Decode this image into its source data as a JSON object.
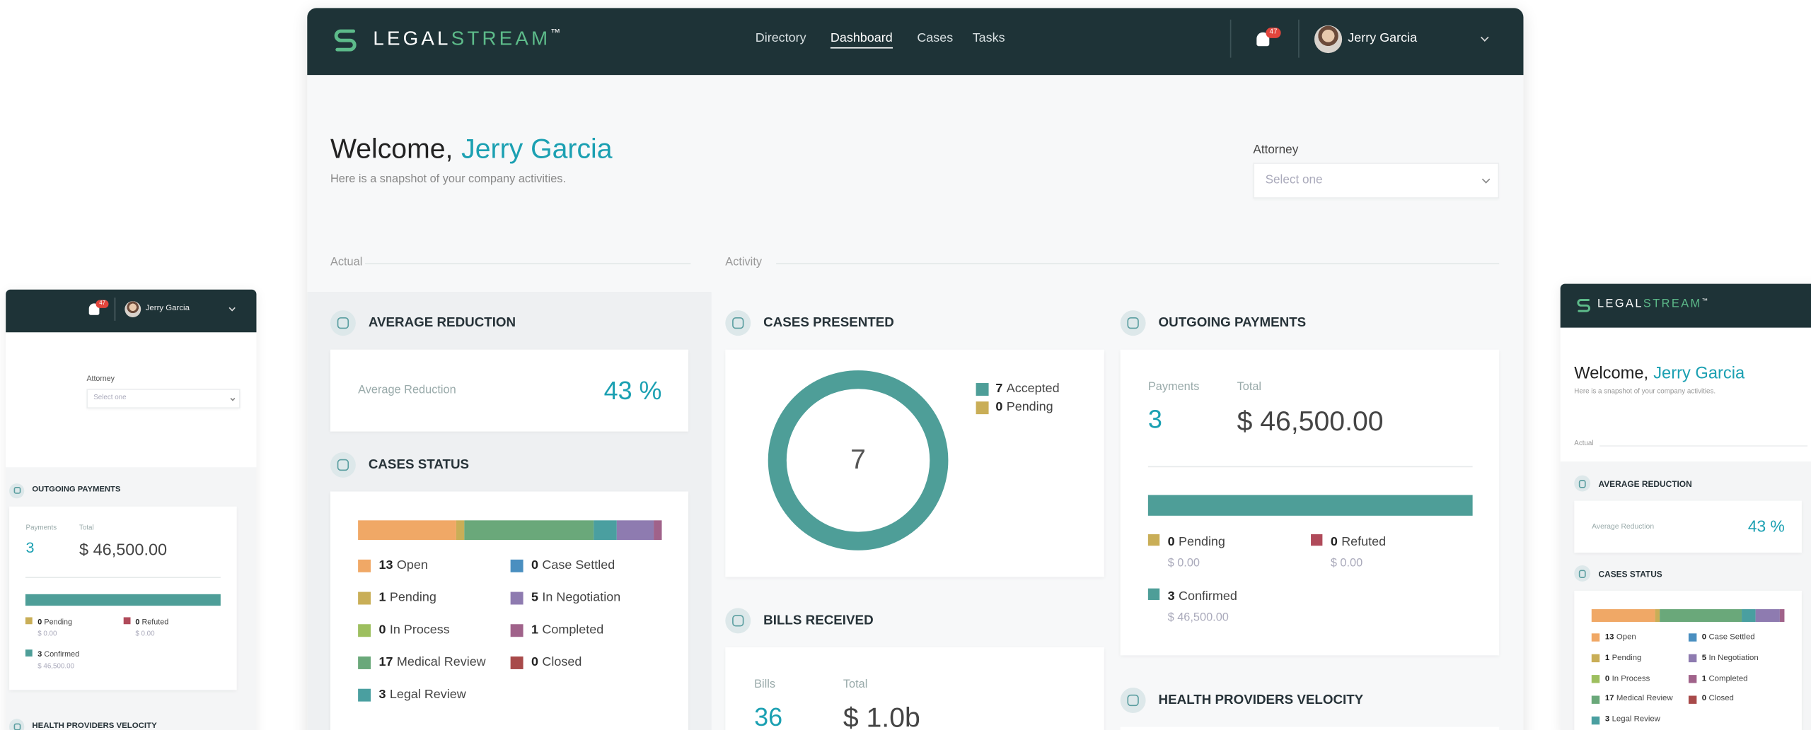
{
  "nav": {
    "brand_left": "LEGAL",
    "brand_right": "STREAM",
    "trademark": "™",
    "links": [
      "Directory",
      "Dashboard",
      "Cases",
      "Tasks"
    ],
    "notification_count": 47,
    "user_name": "Jerry Garcia"
  },
  "welcome": {
    "greeting": "Welcome,",
    "name": "Jerry Garcia",
    "subtitle": "Here is a snapshot of your company activities."
  },
  "attorney_filter": {
    "label": "Attorney",
    "placeholder": "Select one"
  },
  "section_labels": [
    "Actual",
    "Activity"
  ],
  "average_reduction": {
    "title": "AVERAGE REDUCTION",
    "label": "Average Reduction",
    "value": "43 %"
  },
  "cases_status": {
    "title": "CASES STATUS",
    "items": [
      {
        "count": 13,
        "label": "Open",
        "color": "#f0a866"
      },
      {
        "count": 1,
        "label": "Pending",
        "color": "#c9ae57"
      },
      {
        "count": 0,
        "label": "In Process",
        "color": "#9dbf5f"
      },
      {
        "count": 17,
        "label": "Medical Review",
        "color": "#6aa87a"
      },
      {
        "count": 3,
        "label": "Legal Review",
        "color": "#4a9fa0"
      },
      {
        "count": 0,
        "label": "Case Settled",
        "color": "#4a8fc0"
      },
      {
        "count": 5,
        "label": "In Negotiation",
        "color": "#8e7bb0"
      },
      {
        "count": 1,
        "label": "Completed",
        "color": "#a0628a"
      },
      {
        "count": 0,
        "label": "Closed",
        "color": "#a84a4a"
      }
    ]
  },
  "cases_presented": {
    "title": "CASES PRESENTED",
    "total": 7,
    "items": [
      {
        "count": 7,
        "label": "Accepted",
        "color": "#4e9e98"
      },
      {
        "count": 0,
        "label": "Pending",
        "color": "#c9ae57"
      }
    ]
  },
  "outgoing_payments": {
    "title": "OUTGOING PAYMENTS",
    "payments_label": "Payments",
    "payments": 3,
    "total_label": "Total",
    "total": "$ 46,500.00",
    "items": [
      {
        "count": 0,
        "label": "Pending",
        "amount": "$ 0.00",
        "color": "#c9ae57"
      },
      {
        "count": 0,
        "label": "Refuted",
        "amount": "$ 0.00",
        "color": "#b04a5a"
      },
      {
        "count": 3,
        "label": "Confirmed",
        "amount": "$ 46,500.00",
        "color": "#4e9e98"
      }
    ]
  },
  "bills_received": {
    "title": "BILLS RECEIVED",
    "bills_label": "Bills",
    "bills": 36,
    "total_label": "Total",
    "total": "$ 1.0b"
  },
  "health_providers_velocity": {
    "title": "HEALTH PROVIDERS VELOCITY"
  }
}
